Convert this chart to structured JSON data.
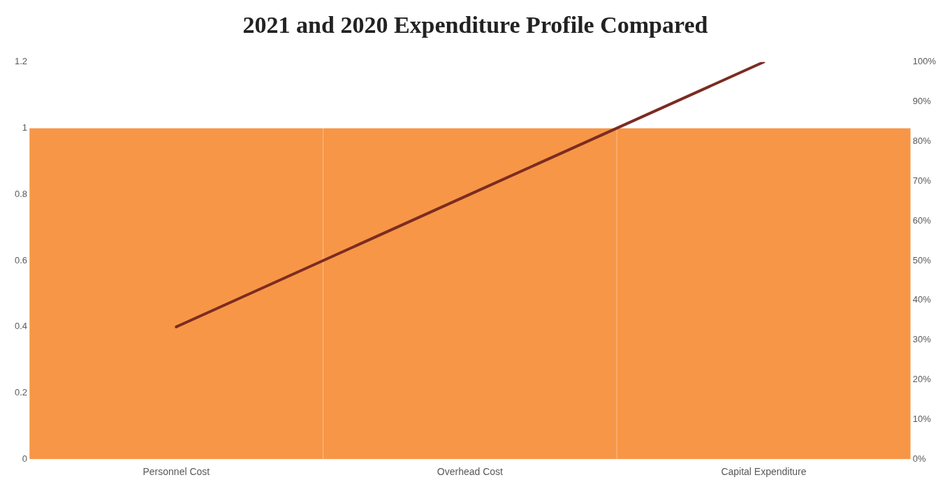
{
  "chart_data": {
    "type": "bar",
    "title": "2021 and 2020 Expenditure Profile Compared",
    "categories": [
      "Personnel Cost",
      "Overhead Cost",
      "Capital Expenditure"
    ],
    "series": [
      {
        "color": "#f79646",
        "values": [
          1,
          1,
          1
        ]
      },
      {
        "type": "line",
        "axis": "y2",
        "color": "#7b2c22",
        "values": [
          33.3,
          66.7,
          100
        ]
      }
    ],
    "ylim": [
      0,
      1.2
    ],
    "yticks": [
      0,
      0.2,
      0.4,
      0.6,
      0.8,
      1,
      1.2
    ],
    "y2lim": [
      0,
      100
    ],
    "y2ticks": [
      {
        "value": 0,
        "label": "0%"
      },
      {
        "value": 10,
        "label": "10%"
      },
      {
        "value": 20,
        "label": "20%"
      },
      {
        "value": 30,
        "label": "30%"
      },
      {
        "value": 40,
        "label": "40%"
      },
      {
        "value": 50,
        "label": "50%"
      },
      {
        "value": 60,
        "label": "60%"
      },
      {
        "value": 70,
        "label": "70%"
      },
      {
        "value": 80,
        "label": "80%"
      },
      {
        "value": 90,
        "label": "90%"
      },
      {
        "value": 100,
        "label": "100%"
      }
    ],
    "marker": "none",
    "grid": false,
    "legend": false
  }
}
